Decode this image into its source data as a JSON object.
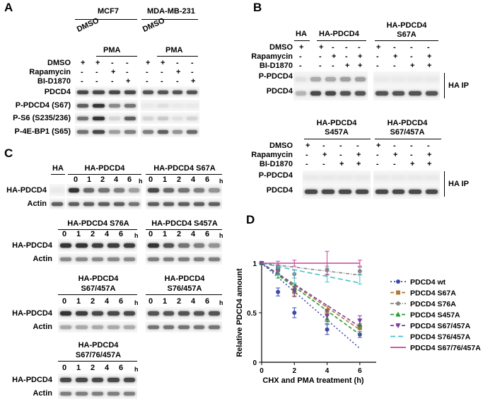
{
  "panels": {
    "a": "A",
    "b": "B",
    "c": "C",
    "d": "D"
  },
  "a": {
    "cell_lines": [
      "MCF7",
      "MDA-MB-231"
    ],
    "dmso_group": "DMSO",
    "pma_group": "PMA",
    "treatments": [
      {
        "label": "DMSO",
        "signs": [
          "+",
          "+",
          "-",
          "-"
        ]
      },
      {
        "label": "Rapamycin",
        "signs": [
          "-",
          "-",
          "+",
          "-"
        ]
      },
      {
        "label": "BI-D1870",
        "signs": [
          "-",
          "-",
          "-",
          "+"
        ]
      }
    ],
    "blots": [
      "PDCD4",
      "P-PDCD4 (S67)",
      "P-S6 (S235/236)",
      "P-4E-BP1 (S65)"
    ]
  },
  "b": {
    "top_headers": [
      "HA",
      "HA-PDCD4"
    ],
    "s67a_header": [
      "HA-PDCD4",
      "S67A"
    ],
    "bottom_headers": [
      [
        "HA-PDCD4",
        "S457A"
      ],
      [
        "HA-PDCD4",
        "S67/457A"
      ]
    ],
    "treatments": [
      "DMSO",
      "Rapamycin",
      "BI-D1870"
    ],
    "signs_top": {
      "ha": [
        "+",
        "-",
        "-"
      ],
      "groups": [
        [
          "+",
          "-",
          "-",
          "-"
        ],
        [
          "-",
          "+",
          "-",
          "+"
        ],
        [
          "-",
          "-",
          "+",
          "+"
        ]
      ]
    },
    "signs_quad": [
      [
        "+",
        "-",
        "-",
        "-"
      ],
      [
        "-",
        "+",
        "-",
        "+"
      ],
      [
        "-",
        "-",
        "+",
        "+"
      ]
    ],
    "blots": [
      "P-PDCD4",
      "PDCD4"
    ],
    "ip_label": "HA IP"
  },
  "c": {
    "ha": "HA",
    "timepoints": [
      "0",
      "1",
      "2",
      "4",
      "6"
    ],
    "unit": "h",
    "blots": [
      "HA-PDCD4",
      "Actin"
    ],
    "groups": [
      {
        "title": "HA-PDCD4"
      },
      {
        "title": "HA-PDCD4  S67A"
      },
      {
        "title": "HA-PDCD4  S76A"
      },
      {
        "title": "HA-PDCD4  S457A"
      },
      {
        "title": "HA-PDCD4",
        "subtitle": "S67/457A"
      },
      {
        "title": "HA-PDCD4",
        "subtitle": "S76/457A"
      },
      {
        "title": "HA-PDCD4",
        "subtitle": "S67/76/457A"
      }
    ]
  },
  "chart_data": {
    "type": "line",
    "x": [
      0,
      1,
      2,
      4,
      6
    ],
    "xlabel": "CHX and PMA treatment (h)",
    "ylabel": "Relative PDCD4 amount",
    "xlim": [
      0,
      7
    ],
    "ylim": [
      0,
      1
    ],
    "xticks": [
      "0",
      "2",
      "4",
      "6"
    ],
    "yticks": [
      "0",
      "0.5",
      "1"
    ],
    "legend_position": "right",
    "series": [
      {
        "name": "PDCD4 wt",
        "values": [
          1,
          0.71,
          0.5,
          0.33,
          0.28
        ],
        "err": [
          0,
          0.04,
          0.05,
          0.05,
          0.03
        ],
        "color": "#3d4aa8",
        "marker": "circle",
        "dash": "2,3",
        "trend": [
          1,
          0.14
        ]
      },
      {
        "name": "PDCD4 S67A",
        "values": [
          1,
          0.93,
          0.71,
          0.52,
          0.35
        ],
        "err": [
          0,
          0.04,
          0.05,
          0.05,
          0.04
        ],
        "color": "#b07a3a",
        "marker": "square",
        "dash": "5,3",
        "trend": [
          1,
          0.33
        ]
      },
      {
        "name": "PDCD4 S76A",
        "values": [
          1,
          0.97,
          0.89,
          0.93,
          0.92
        ],
        "err": [
          0,
          0.03,
          0.04,
          0.04,
          0.04
        ],
        "color": "#888888",
        "marker": "circle",
        "dash": "5,2,1,2",
        "trend": [
          1,
          0.88
        ]
      },
      {
        "name": "PDCD4 S457A",
        "values": [
          1,
          0.9,
          0.75,
          0.44,
          0.38
        ],
        "err": [
          0,
          0.05,
          0.04,
          0.05,
          0.05
        ],
        "color": "#2a9b3c",
        "marker": "triangle",
        "dash": "5,3",
        "trend": [
          1,
          0.28
        ]
      },
      {
        "name": "PDCD4 S67/457A",
        "values": [
          1,
          0.92,
          0.72,
          0.47,
          0.42
        ],
        "err": [
          0,
          0.04,
          0.05,
          0.06,
          0.05
        ],
        "color": "#7b3fa0",
        "marker": "triangle-down",
        "dash": "5,3",
        "trend": [
          1,
          0.36
        ]
      },
      {
        "name": "PDCD4 S76/457A",
        "values": [
          1,
          0.93,
          0.85,
          0.88,
          0.84
        ],
        "err": [
          0,
          0.05,
          0.05,
          0.07,
          0.05
        ],
        "color": "#48c0cc",
        "marker": "none",
        "dash": "7,4",
        "trend": [
          1,
          0.8
        ]
      },
      {
        "name": "PDCD4 S67/76/457A",
        "values": [
          1,
          1,
          1,
          1,
          1
        ],
        "err": [
          0,
          0.02,
          0.03,
          0.12,
          0.03
        ],
        "color": "#c8439c",
        "marker": "none",
        "dash": "",
        "trend": [
          1,
          1
        ]
      }
    ]
  }
}
